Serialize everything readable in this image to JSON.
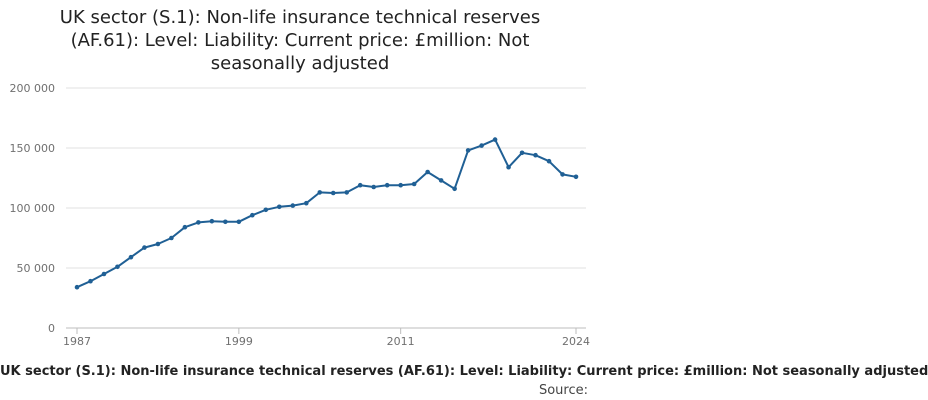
{
  "chart_data": {
    "type": "line",
    "title": "UK sector (S.1): Non-life insurance technical reserves (AF.61): Level: Liability: Current price: £million: Not seasonally adjusted",
    "xlabel": "UK sector (S.1): Non-life insurance technical reserves (AF.61): Level: Liability: Current price: £million: Not seasonally adjusted",
    "ylabel": "",
    "source_label": "Source:",
    "ylim": [
      0,
      200000
    ],
    "xlim": [
      1987,
      2024
    ],
    "y_ticks": [
      0,
      50000,
      100000,
      150000,
      200000
    ],
    "y_tick_labels": [
      "0",
      "50 000",
      "100 000",
      "150 000",
      "200 000"
    ],
    "x_ticks": [
      1987,
      1999,
      2011,
      2024
    ],
    "x_tick_labels": [
      "1987",
      "1999",
      "2011",
      "2024"
    ],
    "grid": true,
    "series": [
      {
        "name": "Non-life insurance technical reserves",
        "color": "#206095",
        "x": [
          1987,
          1988,
          1989,
          1990,
          1991,
          1992,
          1993,
          1994,
          1995,
          1996,
          1997,
          1998,
          1999,
          2000,
          2001,
          2002,
          2003,
          2004,
          2005,
          2006,
          2007,
          2008,
          2009,
          2010,
          2011,
          2012,
          2013,
          2014,
          2015,
          2016,
          2017,
          2018,
          2019,
          2020,
          2021,
          2022,
          2023,
          2024
        ],
        "values": [
          34000,
          39000,
          45000,
          51000,
          59000,
          67000,
          70000,
          75000,
          84000,
          88000,
          89000,
          88500,
          88500,
          94000,
          98500,
          101000,
          102000,
          104000,
          113000,
          112500,
          113000,
          119000,
          117500,
          119000,
          119000,
          120000,
          130000,
          123000,
          116000,
          148000,
          152000,
          157000,
          134000,
          146000,
          144000,
          139000,
          128000,
          126000
        ]
      }
    ]
  }
}
